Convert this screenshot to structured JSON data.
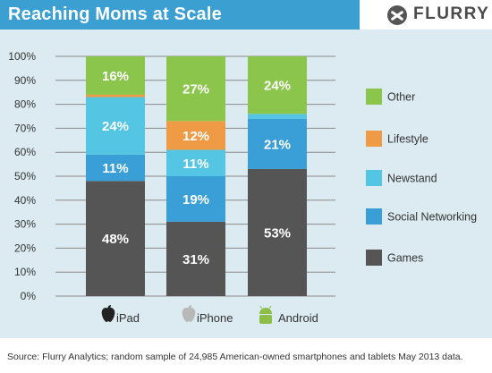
{
  "header": {
    "title": "Reaching Moms at Scale",
    "logo_text": "FLURRY",
    "bg_color": "#3b9fd1"
  },
  "chart_data": {
    "type": "bar",
    "stacked": true,
    "normalized": true,
    "categories": [
      "iPad",
      "iPhone",
      "Android"
    ],
    "category_icons": [
      "apple-logo",
      "apple-logo",
      "android-robot"
    ],
    "series": [
      {
        "name": "Games",
        "color": "#555555",
        "values": [
          48,
          31,
          53
        ]
      },
      {
        "name": "Social Networking",
        "color": "#3a9fd6",
        "values": [
          11,
          19,
          21
        ]
      },
      {
        "name": "Newstand",
        "color": "#54c5e2",
        "values": [
          24,
          11,
          2
        ]
      },
      {
        "name": "Lifestyle",
        "color": "#ef9a45",
        "values": [
          1,
          12,
          0
        ]
      },
      {
        "name": "Other",
        "color": "#8cc54b",
        "values": [
          16,
          27,
          24
        ]
      }
    ],
    "segment_labels": [
      [
        "48%",
        "11%",
        "24%",
        "",
        "16%"
      ],
      [
        "31%",
        "19%",
        "11%",
        "12%",
        "27%"
      ],
      [
        "53%",
        "21%",
        "",
        "",
        "24%"
      ]
    ],
    "y_ticks": [
      "0%",
      "10%",
      "20%",
      "30%",
      "40%",
      "50%",
      "60%",
      "70%",
      "80%",
      "90%",
      "100%"
    ],
    "ylim": [
      0,
      100
    ],
    "grid": true,
    "legend_order": [
      "Other",
      "Lifestyle",
      "Newstand",
      "Social Networking",
      "Games"
    ],
    "legend_position": "right"
  },
  "footer": {
    "source": "Source: Flurry Analytics; random sample of 24,985 American-owned smartphones and tablets May 2013 data."
  }
}
